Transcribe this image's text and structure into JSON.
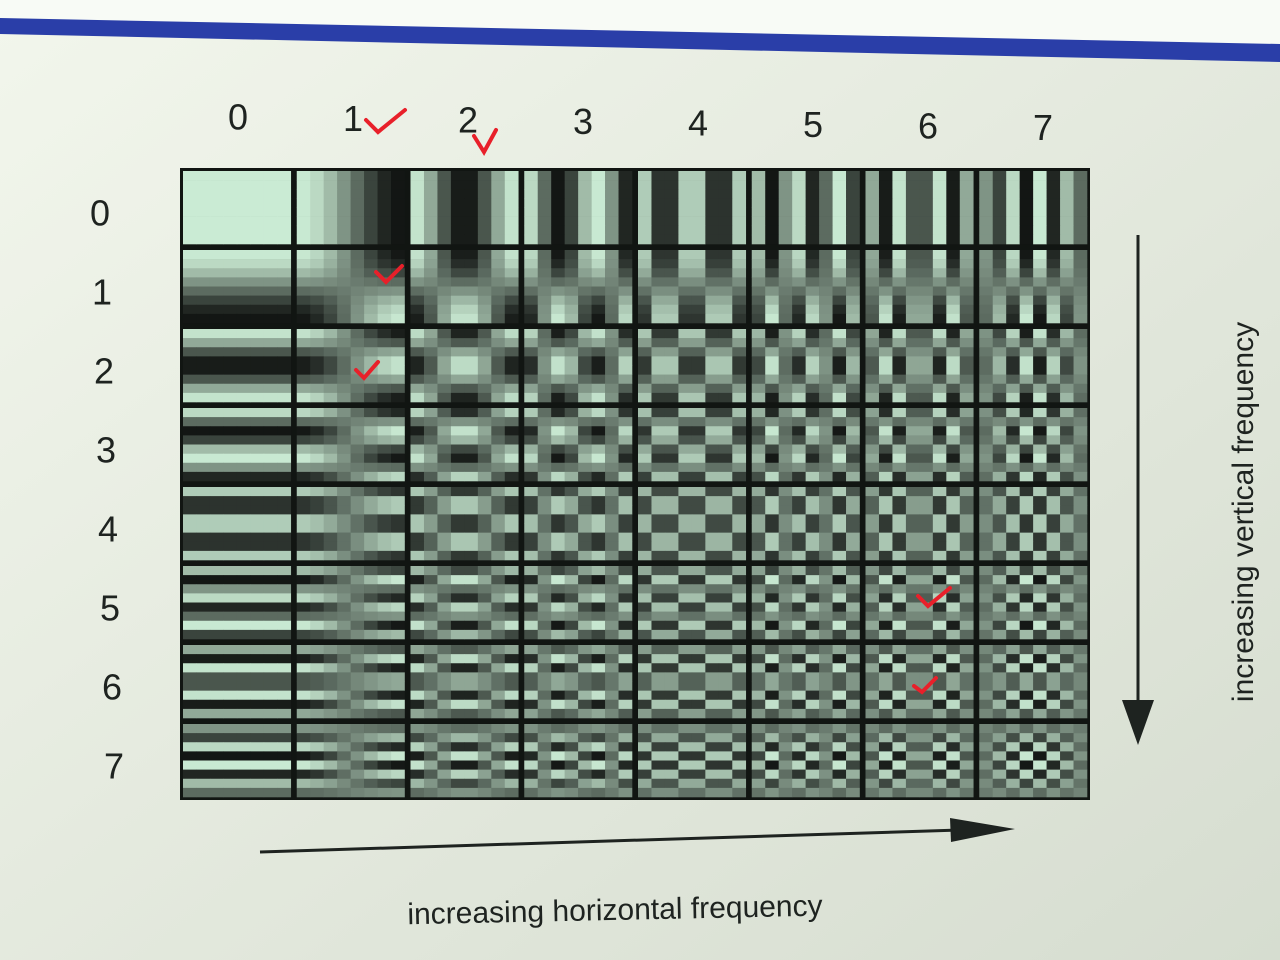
{
  "column_labels": [
    "0",
    "1",
    "2",
    "3",
    "4",
    "5",
    "6",
    "7"
  ],
  "row_labels": [
    "0",
    "1",
    "2",
    "3",
    "4",
    "5",
    "6",
    "7"
  ],
  "horizontal_axis_label": "increasing horizontal frequency",
  "vertical_axis_label": "increasing vertical frequency"
}
